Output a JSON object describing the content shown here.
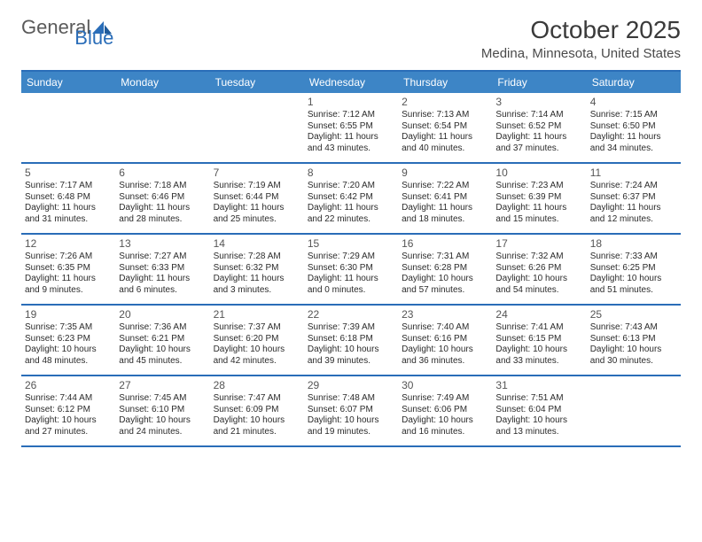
{
  "brand": {
    "part1": "General",
    "part2": "Blue"
  },
  "title": "October 2025",
  "location": "Medina, Minnesota, United States",
  "colors": {
    "header_bg": "#3d85c6",
    "border": "#2a6db8",
    "brand_gray": "#5a5a5a",
    "brand_blue": "#2a6db8",
    "title_color": "#3a3a3a",
    "text": "#2b2b2b"
  },
  "dayHeaders": [
    "Sunday",
    "Monday",
    "Tuesday",
    "Wednesday",
    "Thursday",
    "Friday",
    "Saturday"
  ],
  "weeks": [
    [
      null,
      null,
      null,
      {
        "n": "1",
        "r": "7:12 AM",
        "s": "6:55 PM",
        "d1": "11 hours",
        "d2": "43 minutes."
      },
      {
        "n": "2",
        "r": "7:13 AM",
        "s": "6:54 PM",
        "d1": "11 hours",
        "d2": "40 minutes."
      },
      {
        "n": "3",
        "r": "7:14 AM",
        "s": "6:52 PM",
        "d1": "11 hours",
        "d2": "37 minutes."
      },
      {
        "n": "4",
        "r": "7:15 AM",
        "s": "6:50 PM",
        "d1": "11 hours",
        "d2": "34 minutes."
      }
    ],
    [
      {
        "n": "5",
        "r": "7:17 AM",
        "s": "6:48 PM",
        "d1": "11 hours",
        "d2": "31 minutes."
      },
      {
        "n": "6",
        "r": "7:18 AM",
        "s": "6:46 PM",
        "d1": "11 hours",
        "d2": "28 minutes."
      },
      {
        "n": "7",
        "r": "7:19 AM",
        "s": "6:44 PM",
        "d1": "11 hours",
        "d2": "25 minutes."
      },
      {
        "n": "8",
        "r": "7:20 AM",
        "s": "6:42 PM",
        "d1": "11 hours",
        "d2": "22 minutes."
      },
      {
        "n": "9",
        "r": "7:22 AM",
        "s": "6:41 PM",
        "d1": "11 hours",
        "d2": "18 minutes."
      },
      {
        "n": "10",
        "r": "7:23 AM",
        "s": "6:39 PM",
        "d1": "11 hours",
        "d2": "15 minutes."
      },
      {
        "n": "11",
        "r": "7:24 AM",
        "s": "6:37 PM",
        "d1": "11 hours",
        "d2": "12 minutes."
      }
    ],
    [
      {
        "n": "12",
        "r": "7:26 AM",
        "s": "6:35 PM",
        "d1": "11 hours",
        "d2": "9 minutes."
      },
      {
        "n": "13",
        "r": "7:27 AM",
        "s": "6:33 PM",
        "d1": "11 hours",
        "d2": "6 minutes."
      },
      {
        "n": "14",
        "r": "7:28 AM",
        "s": "6:32 PM",
        "d1": "11 hours",
        "d2": "3 minutes."
      },
      {
        "n": "15",
        "r": "7:29 AM",
        "s": "6:30 PM",
        "d1": "11 hours",
        "d2": "0 minutes."
      },
      {
        "n": "16",
        "r": "7:31 AM",
        "s": "6:28 PM",
        "d1": "10 hours",
        "d2": "57 minutes."
      },
      {
        "n": "17",
        "r": "7:32 AM",
        "s": "6:26 PM",
        "d1": "10 hours",
        "d2": "54 minutes."
      },
      {
        "n": "18",
        "r": "7:33 AM",
        "s": "6:25 PM",
        "d1": "10 hours",
        "d2": "51 minutes."
      }
    ],
    [
      {
        "n": "19",
        "r": "7:35 AM",
        "s": "6:23 PM",
        "d1": "10 hours",
        "d2": "48 minutes."
      },
      {
        "n": "20",
        "r": "7:36 AM",
        "s": "6:21 PM",
        "d1": "10 hours",
        "d2": "45 minutes."
      },
      {
        "n": "21",
        "r": "7:37 AM",
        "s": "6:20 PM",
        "d1": "10 hours",
        "d2": "42 minutes."
      },
      {
        "n": "22",
        "r": "7:39 AM",
        "s": "6:18 PM",
        "d1": "10 hours",
        "d2": "39 minutes."
      },
      {
        "n": "23",
        "r": "7:40 AM",
        "s": "6:16 PM",
        "d1": "10 hours",
        "d2": "36 minutes."
      },
      {
        "n": "24",
        "r": "7:41 AM",
        "s": "6:15 PM",
        "d1": "10 hours",
        "d2": "33 minutes."
      },
      {
        "n": "25",
        "r": "7:43 AM",
        "s": "6:13 PM",
        "d1": "10 hours",
        "d2": "30 minutes."
      }
    ],
    [
      {
        "n": "26",
        "r": "7:44 AM",
        "s": "6:12 PM",
        "d1": "10 hours",
        "d2": "27 minutes."
      },
      {
        "n": "27",
        "r": "7:45 AM",
        "s": "6:10 PM",
        "d1": "10 hours",
        "d2": "24 minutes."
      },
      {
        "n": "28",
        "r": "7:47 AM",
        "s": "6:09 PM",
        "d1": "10 hours",
        "d2": "21 minutes."
      },
      {
        "n": "29",
        "r": "7:48 AM",
        "s": "6:07 PM",
        "d1": "10 hours",
        "d2": "19 minutes."
      },
      {
        "n": "30",
        "r": "7:49 AM",
        "s": "6:06 PM",
        "d1": "10 hours",
        "d2": "16 minutes."
      },
      {
        "n": "31",
        "r": "7:51 AM",
        "s": "6:04 PM",
        "d1": "10 hours",
        "d2": "13 minutes."
      },
      null
    ]
  ]
}
